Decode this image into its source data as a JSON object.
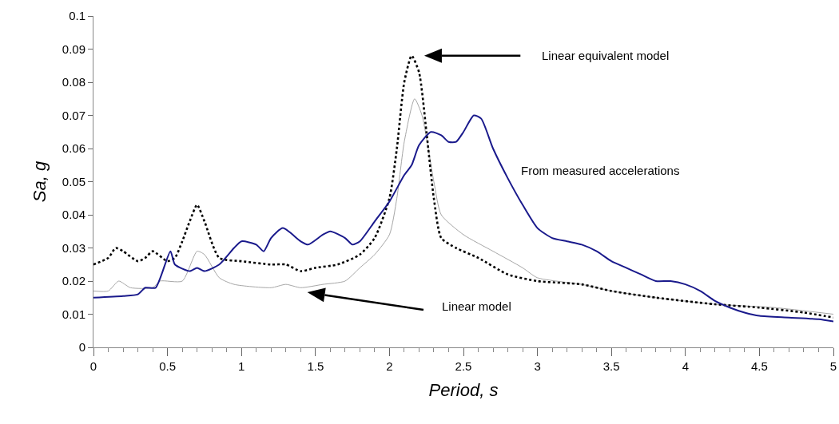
{
  "chart_data": {
    "type": "line",
    "xlabel": "Period, s",
    "ylabel": "Sa, g",
    "xlim": [
      0,
      5
    ],
    "ylim": [
      0,
      0.1
    ],
    "xticks": [
      0,
      0.5,
      1,
      1.5,
      2,
      2.5,
      3,
      3.5,
      4,
      4.5,
      5
    ],
    "yticks": [
      0,
      0.01,
      0.02,
      0.03,
      0.04,
      0.05,
      0.06,
      0.07,
      0.08,
      0.09,
      0.1
    ],
    "grid": false,
    "marker": "none",
    "series": [
      {
        "color": "#a6a6a6",
        "line_style": "solid",
        "x": [
          0,
          0.1,
          0.17,
          0.25,
          0.4,
          0.45,
          0.6,
          0.7,
          0.75,
          0.85,
          0.95,
          1.2,
          1.3,
          1.4,
          1.55,
          1.7,
          1.8,
          1.9,
          2,
          2.05,
          2.1,
          2.17,
          2.22,
          2.3,
          2.35,
          2.5,
          2.7,
          2.9,
          3,
          3.3,
          3.5,
          3.8,
          4.2,
          4.6,
          5
        ],
        "values": [
          0.017,
          0.017,
          0.02,
          0.018,
          0.018,
          0.02,
          0.02,
          0.029,
          0.028,
          0.021,
          0.019,
          0.018,
          0.019,
          0.018,
          0.019,
          0.02,
          0.024,
          0.028,
          0.034,
          0.045,
          0.062,
          0.075,
          0.07,
          0.05,
          0.04,
          0.034,
          0.029,
          0.024,
          0.021,
          0.019,
          0.017,
          0.015,
          0.013,
          0.012,
          0.01
        ]
      },
      {
        "color": "#000000",
        "line_style": "dotted",
        "x": [
          0,
          0.1,
          0.15,
          0.2,
          0.3,
          0.35,
          0.4,
          0.5,
          0.55,
          0.6,
          0.65,
          0.7,
          0.75,
          0.85,
          1,
          1.2,
          1.3,
          1.4,
          1.5,
          1.65,
          1.8,
          1.9,
          2,
          2.05,
          2.1,
          2.15,
          2.2,
          2.25,
          2.3,
          2.35,
          2.45,
          2.6,
          2.8,
          3,
          3.3,
          3.5,
          3.8,
          4.2,
          4.5,
          4.8,
          5
        ],
        "values": [
          0.025,
          0.027,
          0.03,
          0.029,
          0.026,
          0.027,
          0.029,
          0.026,
          0.027,
          0.032,
          0.038,
          0.043,
          0.038,
          0.027,
          0.026,
          0.025,
          0.025,
          0.023,
          0.024,
          0.025,
          0.028,
          0.033,
          0.045,
          0.06,
          0.08,
          0.088,
          0.083,
          0.065,
          0.045,
          0.033,
          0.03,
          0.027,
          0.022,
          0.02,
          0.019,
          0.017,
          0.015,
          0.013,
          0.012,
          0.0105,
          0.009
        ]
      },
      {
        "color": "#1a1a8c",
        "line_style": "solid",
        "x": [
          0,
          0.2,
          0.3,
          0.35,
          0.42,
          0.52,
          0.55,
          0.65,
          0.7,
          0.75,
          0.85,
          0.95,
          1,
          1.1,
          1.15,
          1.2,
          1.28,
          1.4,
          1.45,
          1.55,
          1.6,
          1.7,
          1.75,
          1.8,
          1.9,
          2,
          2.1,
          2.15,
          2.2,
          2.28,
          2.35,
          2.4,
          2.45,
          2.5,
          2.57,
          2.62,
          2.7,
          2.8,
          2.9,
          3,
          3.1,
          3.2,
          3.3,
          3.4,
          3.5,
          3.6,
          3.7,
          3.8,
          3.9,
          4,
          4.1,
          4.2,
          4.3,
          4.4,
          4.5,
          4.7,
          4.9,
          5
        ],
        "values": [
          0.015,
          0.0155,
          0.016,
          0.018,
          0.018,
          0.029,
          0.025,
          0.023,
          0.024,
          0.023,
          0.025,
          0.03,
          0.032,
          0.031,
          0.029,
          0.033,
          0.036,
          0.032,
          0.031,
          0.034,
          0.035,
          0.033,
          0.031,
          0.032,
          0.038,
          0.044,
          0.052,
          0.055,
          0.061,
          0.065,
          0.064,
          0.062,
          0.062,
          0.065,
          0.07,
          0.069,
          0.06,
          0.051,
          0.043,
          0.036,
          0.033,
          0.032,
          0.031,
          0.029,
          0.026,
          0.024,
          0.022,
          0.02,
          0.02,
          0.019,
          0.017,
          0.014,
          0.012,
          0.0105,
          0.0095,
          0.009,
          0.0085,
          0.0078
        ]
      }
    ],
    "annotations": [
      "Linear equivalent model",
      "Linear model",
      "From measured accelerations"
    ]
  }
}
